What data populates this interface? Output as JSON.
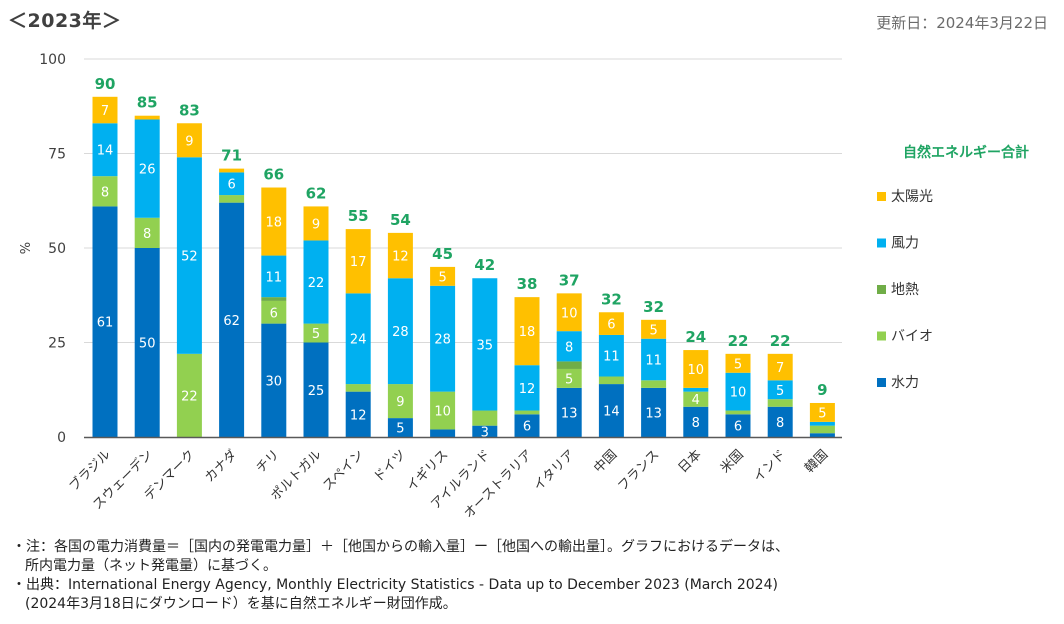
{
  "header": {
    "year_title": "＜2023年＞",
    "updated": "更新日：2024年3月22日"
  },
  "colors": {
    "solar": "#FFC000",
    "wind": "#00B0F0",
    "geothermal": "#70AD47",
    "bio": "#92D050",
    "hydro": "#0070C0",
    "total_label": "#1FA463",
    "gridline": "#D9D9D9",
    "axis": "#595959"
  },
  "chart_data": {
    "type": "bar",
    "stacked": true,
    "title": "＜2023年＞",
    "xlabel": "",
    "ylabel": "%",
    "ylim": [
      0,
      100
    ],
    "yticks": [
      0,
      25,
      50,
      75,
      100
    ],
    "grid": true,
    "legend_position": "right",
    "legend_title": "自然エネルギー合計",
    "categories": [
      "ブラジル",
      "スウェーデン",
      "デンマーク",
      "カナダ",
      "チリ",
      "ポルトガル",
      "スペイン",
      "ドイツ",
      "イギリス",
      "アイルランド",
      "オーストラリア",
      "イタリア",
      "中国",
      "フランス",
      "日本",
      "米国",
      "インド",
      "韓国"
    ],
    "totals": [
      90,
      85,
      83,
      71,
      66,
      62,
      55,
      54,
      45,
      42,
      38,
      37,
      32,
      32,
      24,
      22,
      22,
      9
    ],
    "series": [
      {
        "key": "hydro",
        "name": "水力",
        "values": [
          61,
          50,
          0,
          62,
          30,
          25,
          12,
          5,
          2,
          3,
          6,
          13,
          14,
          13,
          8,
          6,
          8,
          1
        ],
        "labels": [
          "61",
          "50",
          "",
          "62",
          "30",
          "25",
          "12",
          "5",
          "",
          "3",
          "6",
          "13",
          "14",
          "13",
          "8",
          "6",
          "8",
          ""
        ]
      },
      {
        "key": "bio",
        "name": "バイオ",
        "values": [
          8,
          8,
          22,
          2,
          6,
          5,
          2,
          9,
          10,
          4,
          1,
          5,
          2,
          2,
          4,
          1,
          2,
          2
        ],
        "labels": [
          "8",
          "8",
          "22",
          "",
          "6",
          "5",
          "",
          "9",
          "10",
          "",
          "",
          "5",
          "",
          "",
          "4",
          "",
          "",
          ""
        ]
      },
      {
        "key": "geothermal",
        "name": "地熱",
        "values": [
          0,
          0,
          0,
          0,
          1,
          0,
          0,
          0,
          0,
          0,
          0,
          2,
          0,
          0,
          0,
          0,
          0,
          0
        ],
        "labels": [
          "",
          "",
          "",
          "",
          "",
          "",
          "",
          "",
          "",
          "",
          "",
          "",
          "",
          "",
          "",
          "",
          "",
          ""
        ]
      },
      {
        "key": "wind",
        "name": "風力",
        "values": [
          14,
          26,
          52,
          6,
          11,
          22,
          24,
          28,
          28,
          35,
          12,
          8,
          11,
          11,
          1,
          10,
          5,
          1
        ],
        "labels": [
          "14",
          "26",
          "52",
          "6",
          "11",
          "22",
          "24",
          "28",
          "28",
          "35",
          "12",
          "8",
          "11",
          "11",
          "",
          "10",
          "5",
          ""
        ]
      },
      {
        "key": "solar",
        "name": "太陽光",
        "values": [
          7,
          1,
          9,
          1,
          18,
          9,
          17,
          12,
          5,
          0,
          18,
          10,
          6,
          5,
          10,
          5,
          7,
          5
        ],
        "labels": [
          "7",
          "",
          "9",
          "",
          "18",
          "9",
          "17",
          "12",
          "5",
          "",
          "18",
          "10",
          "6",
          "5",
          "10",
          "5",
          "7",
          "5"
        ]
      }
    ],
    "legend_order": [
      "solar",
      "wind",
      "geothermal",
      "bio",
      "hydro"
    ]
  },
  "notes": {
    "note_line1": "・注：各国の電力消費量＝［国内の発電電力量］＋［他国からの輸入量］ー［他国への輸出量］。グラフにおけるデータは、",
    "note_line2": "所内電力量（ネット発電量）に基づく。",
    "source_line1": "・出典：International Energy Agency, Monthly Electricity Statistics - Data up to December 2023 (March 2024)",
    "source_line2": "(2024年3月18日にダウンロード）を基に自然エネルギー財団作成。"
  }
}
